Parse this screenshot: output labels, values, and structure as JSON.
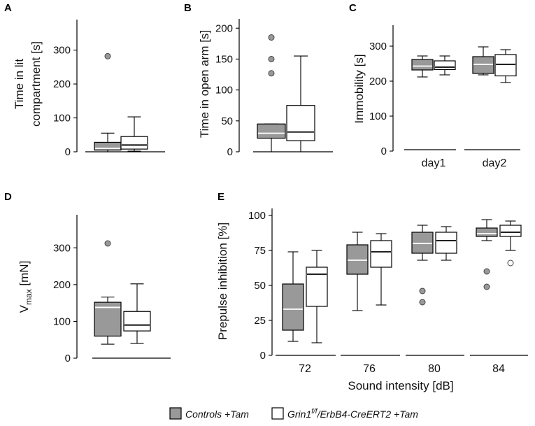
{
  "colors": {
    "control_fill": "#999999",
    "control_median": "#ffffff",
    "grin_fill": "#ffffff",
    "grin_median": "#000000",
    "control_outlier": "#999999",
    "grin_outlier": "#ffffff",
    "stroke": "#000000"
  },
  "legend": {
    "controls_label": "Controls +Tam",
    "grin_prefix": "Grin1",
    "grin_sup": "f/f",
    "grin_suffix": "/ErbB4-CreERT2 +Tam"
  },
  "chart_data": [
    {
      "id": "A",
      "type": "box",
      "panel_letter": "A",
      "ylabel_lines": [
        "Time in lit",
        "compartment [s]"
      ],
      "xlabel": "",
      "ylim": [
        0,
        390
      ],
      "yticks": [
        0,
        100,
        200,
        300
      ],
      "categories": [
        ""
      ],
      "series": [
        {
          "name": "Controls +Tam",
          "group": "control",
          "boxes": [
            {
              "whislo": 0,
              "q1": 5,
              "med": 10,
              "q3": 28,
              "whishi": 55,
              "outliers": [
                282
              ]
            }
          ]
        },
        {
          "name": "Grin1 f/f/ErbB4-CreERT2 +Tam",
          "group": "grin",
          "boxes": [
            {
              "whislo": 2,
              "q1": 8,
              "med": 20,
              "q3": 45,
              "whishi": 103,
              "outliers": []
            }
          ]
        }
      ]
    },
    {
      "id": "B",
      "type": "box",
      "panel_letter": "B",
      "ylabel_lines": [
        "Time in open arm [s]"
      ],
      "xlabel": "",
      "ylim": [
        0,
        215
      ],
      "yticks": [
        0,
        50,
        100,
        150,
        200
      ],
      "categories": [
        ""
      ],
      "series": [
        {
          "name": "Controls +Tam",
          "group": "control",
          "boxes": [
            {
              "whislo": 0,
              "q1": 22,
              "med": 30,
              "q3": 45,
              "whishi": 45,
              "outliers": [
                127,
                150,
                185
              ]
            }
          ]
        },
        {
          "name": "Grin1 f/f/ErbB4-CreERT2 +Tam",
          "group": "grin",
          "boxes": [
            {
              "whislo": 0,
              "q1": 18,
              "med": 32,
              "q3": 75,
              "whishi": 155,
              "outliers": []
            }
          ]
        }
      ]
    },
    {
      "id": "C",
      "type": "box",
      "panel_letter": "C",
      "ylabel_lines": [
        "Immobility [s]"
      ],
      "xlabel": "",
      "ylim": [
        0,
        360
      ],
      "yticks": [
        0,
        100,
        200,
        300
      ],
      "categories": [
        "day1",
        "day2"
      ],
      "series": [
        {
          "name": "Controls +Tam",
          "group": "control",
          "boxes": [
            {
              "whislo": 212,
              "q1": 232,
              "med": 243,
              "q3": 262,
              "whishi": 272,
              "outliers": []
            },
            {
              "whislo": 218,
              "q1": 222,
              "med": 248,
              "q3": 270,
              "whishi": 298,
              "outliers": []
            }
          ]
        },
        {
          "name": "Grin1 f/f/ErbB4-CreERT2 +Tam",
          "group": "grin",
          "boxes": [
            {
              "whislo": 218,
              "q1": 233,
              "med": 240,
              "q3": 258,
              "whishi": 272,
              "outliers": []
            },
            {
              "whislo": 196,
              "q1": 215,
              "med": 248,
              "q3": 276,
              "whishi": 290,
              "outliers": []
            }
          ]
        }
      ]
    },
    {
      "id": "D",
      "type": "box",
      "panel_letter": "D",
      "ylabel_main": "V",
      "ylabel_sub": "max",
      "ylabel_unit": " [mN]",
      "xlabel": "",
      "ylim": [
        0,
        390
      ],
      "yticks": [
        0,
        100,
        200,
        300
      ],
      "categories": [
        ""
      ],
      "series": [
        {
          "name": "Controls +Tam",
          "group": "control",
          "boxes": [
            {
              "whislo": 38,
              "q1": 60,
              "med": 138,
              "q3": 152,
              "whishi": 166,
              "outliers": [
                312
              ]
            }
          ]
        },
        {
          "name": "Grin1 f/f/ErbB4-CreERT2 +Tam",
          "group": "grin",
          "boxes": [
            {
              "whislo": 40,
              "q1": 74,
              "med": 90,
              "q3": 127,
              "whishi": 202,
              "outliers": []
            }
          ]
        }
      ]
    },
    {
      "id": "E",
      "type": "box",
      "panel_letter": "E",
      "ylabel_lines": [
        "Prepulse inhibition [%]"
      ],
      "xlabel": "Sound intensity [dB]",
      "ylim": [
        0,
        105
      ],
      "yticks": [
        0,
        25,
        50,
        75,
        100
      ],
      "categories": [
        "72",
        "76",
        "80",
        "84"
      ],
      "series": [
        {
          "name": "Controls +Tam",
          "group": "control",
          "boxes": [
            {
              "whislo": 10,
              "q1": 18,
              "med": 33,
              "q3": 51,
              "whishi": 74,
              "outliers": []
            },
            {
              "whislo": 32,
              "q1": 58,
              "med": 68,
              "q3": 79,
              "whishi": 88,
              "outliers": []
            },
            {
              "whislo": 68,
              "q1": 73,
              "med": 80,
              "q3": 88,
              "whishi": 93,
              "outliers": [
                38,
                46
              ]
            },
            {
              "whislo": 82,
              "q1": 85,
              "med": 87,
              "q3": 91,
              "whishi": 97,
              "outliers": [
                49,
                60
              ]
            }
          ]
        },
        {
          "name": "Grin1 f/f/ErbB4-CreERT2 +Tam",
          "group": "grin",
          "boxes": [
            {
              "whislo": 9,
              "q1": 35,
              "med": 58,
              "q3": 63,
              "whishi": 75,
              "outliers": []
            },
            {
              "whislo": 36,
              "q1": 63,
              "med": 74,
              "q3": 82,
              "whishi": 87,
              "outliers": []
            },
            {
              "whislo": 68,
              "q1": 73,
              "med": 82,
              "q3": 88,
              "whishi": 92,
              "outliers": []
            },
            {
              "whislo": 75,
              "q1": 85,
              "med": 88,
              "q3": 93,
              "whishi": 96,
              "outliers": [
                66
              ]
            }
          ]
        }
      ]
    }
  ]
}
